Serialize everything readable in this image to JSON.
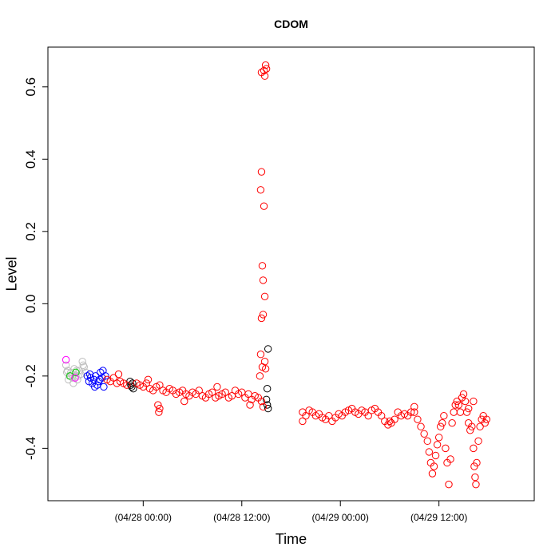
{
  "chart_data": {
    "type": "scatter",
    "title": "CDOM",
    "xlabel": "Time",
    "ylabel": "Level",
    "x_ticks": [
      "(04/28 00:00)",
      "(04/28 12:00)",
      "(04/29 00:00)",
      "(04/29 12:00)"
    ],
    "y_ticks": [
      "-0.4",
      "-0.2",
      "0.0",
      "0.2",
      "0.4",
      "0.6"
    ],
    "x_range_hours": [
      -11.6,
      47.6
    ],
    "ylim": [
      -0.545,
      0.71
    ],
    "grid": false,
    "legend": "none",
    "marker": "open-circle",
    "x_units": "hours relative to 04/28 00:00",
    "series": [
      {
        "color": "#bebebe",
        "points": [
          [
            -9.4,
            -0.17
          ],
          [
            -9.2,
            -0.185
          ],
          [
            -9.0,
            -0.2
          ],
          [
            -8.8,
            -0.19
          ],
          [
            -8.6,
            -0.205
          ],
          [
            -8.4,
            -0.18
          ],
          [
            -8.2,
            -0.2
          ],
          [
            -8.0,
            -0.21
          ],
          [
            -7.8,
            -0.185
          ],
          [
            -7.6,
            -0.195
          ],
          [
            -7.4,
            -0.16
          ],
          [
            -7.2,
            -0.175
          ],
          [
            -7.0,
            -0.19
          ],
          [
            -6.8,
            -0.2
          ],
          [
            -9.1,
            -0.21
          ],
          [
            -8.5,
            -0.22
          ],
          [
            -7.9,
            -0.2
          ],
          [
            -7.3,
            -0.17
          ],
          [
            -9.3,
            -0.19
          ],
          [
            -8.1,
            -0.185
          ]
        ]
      },
      {
        "color": "#00cd00",
        "points": [
          [
            -8.2,
            -0.19
          ],
          [
            -8.9,
            -0.2
          ]
        ]
      },
      {
        "color": "#ff00ff",
        "points": [
          [
            -9.4,
            -0.155
          ],
          [
            -8.3,
            -0.205
          ]
        ]
      },
      {
        "color": "#0000ff",
        "points": [
          [
            -6.8,
            -0.2
          ],
          [
            -6.6,
            -0.215
          ],
          [
            -6.4,
            -0.205
          ],
          [
            -6.2,
            -0.22
          ],
          [
            -6.0,
            -0.21
          ],
          [
            -5.8,
            -0.2
          ],
          [
            -5.6,
            -0.225
          ],
          [
            -5.4,
            -0.215
          ],
          [
            -5.2,
            -0.19
          ],
          [
            -5.0,
            -0.205
          ],
          [
            -4.8,
            -0.23
          ],
          [
            -4.6,
            -0.2
          ],
          [
            -6.5,
            -0.195
          ],
          [
            -5.9,
            -0.23
          ],
          [
            -5.3,
            -0.21
          ],
          [
            -4.9,
            -0.185
          ]
        ]
      },
      {
        "color": "#000000",
        "points": [
          [
            -1.6,
            -0.215
          ],
          [
            -1.5,
            -0.225
          ],
          [
            -1.4,
            -0.23
          ],
          [
            -1.3,
            -0.22
          ],
          [
            -1.2,
            -0.235
          ],
          [
            15.2,
            -0.125
          ],
          [
            15.1,
            -0.235
          ],
          [
            15.0,
            -0.265
          ],
          [
            15.1,
            -0.28
          ],
          [
            15.2,
            -0.29
          ]
        ]
      },
      {
        "color": "#ff0000",
        "points": [
          [
            -4.4,
            -0.21
          ],
          [
            -4.0,
            -0.215
          ],
          [
            -3.6,
            -0.205
          ],
          [
            -3.2,
            -0.22
          ],
          [
            -2.8,
            -0.215
          ],
          [
            -2.4,
            -0.22
          ],
          [
            -2.0,
            -0.225
          ],
          [
            -0.8,
            -0.22
          ],
          [
            -0.4,
            -0.225
          ],
          [
            0.0,
            -0.23
          ],
          [
            0.4,
            -0.22
          ],
          [
            0.8,
            -0.235
          ],
          [
            1.2,
            -0.24
          ],
          [
            1.6,
            -0.23
          ],
          [
            2.0,
            -0.225
          ],
          [
            2.4,
            -0.24
          ],
          [
            2.8,
            -0.245
          ],
          [
            3.2,
            -0.235
          ],
          [
            3.6,
            -0.24
          ],
          [
            4.0,
            -0.25
          ],
          [
            4.4,
            -0.245
          ],
          [
            4.8,
            -0.24
          ],
          [
            5.2,
            -0.25
          ],
          [
            5.6,
            -0.255
          ],
          [
            6.0,
            -0.245
          ],
          [
            6.4,
            -0.25
          ],
          [
            6.8,
            -0.24
          ],
          [
            7.2,
            -0.255
          ],
          [
            7.6,
            -0.26
          ],
          [
            8.0,
            -0.25
          ],
          [
            8.4,
            -0.245
          ],
          [
            8.8,
            -0.26
          ],
          [
            9.2,
            -0.255
          ],
          [
            9.6,
            -0.25
          ],
          [
            10.0,
            -0.245
          ],
          [
            10.4,
            -0.26
          ],
          [
            10.8,
            -0.255
          ],
          [
            11.2,
            -0.24
          ],
          [
            11.6,
            -0.25
          ],
          [
            12.0,
            -0.245
          ],
          [
            12.4,
            -0.26
          ],
          [
            12.8,
            -0.25
          ],
          [
            13.2,
            -0.265
          ],
          [
            13.6,
            -0.255
          ],
          [
            14.0,
            -0.26
          ],
          [
            14.4,
            -0.27
          ],
          [
            1.8,
            -0.28
          ],
          [
            2.0,
            -0.29
          ],
          [
            1.9,
            -0.3
          ],
          [
            -3.0,
            -0.195
          ],
          [
            0.6,
            -0.21
          ],
          [
            5.0,
            -0.27
          ],
          [
            9.0,
            -0.23
          ],
          [
            13.0,
            -0.28
          ],
          [
            14.6,
            -0.285
          ],
          [
            14.3,
            -0.14
          ],
          [
            14.5,
            -0.175
          ],
          [
            14.2,
            -0.2
          ],
          [
            14.4,
            0.365
          ],
          [
            14.3,
            0.315
          ],
          [
            14.5,
            0.105
          ],
          [
            14.6,
            0.065
          ],
          [
            14.8,
            0.02
          ],
          [
            14.4,
            -0.04
          ],
          [
            14.6,
            -0.03
          ],
          [
            14.7,
            0.27
          ],
          [
            14.7,
            0.645
          ],
          [
            14.9,
            0.66
          ],
          [
            14.8,
            0.63
          ],
          [
            14.4,
            0.64
          ],
          [
            15.0,
            0.65
          ],
          [
            14.8,
            -0.16
          ],
          [
            14.9,
            -0.18
          ],
          [
            19.4,
            -0.3
          ],
          [
            19.4,
            -0.325
          ],
          [
            19.8,
            -0.31
          ],
          [
            20.2,
            -0.295
          ],
          [
            20.6,
            -0.3
          ],
          [
            21.0,
            -0.31
          ],
          [
            21.4,
            -0.305
          ],
          [
            21.8,
            -0.315
          ],
          [
            22.2,
            -0.32
          ],
          [
            22.6,
            -0.31
          ],
          [
            23.0,
            -0.325
          ],
          [
            23.4,
            -0.315
          ],
          [
            23.8,
            -0.305
          ],
          [
            24.2,
            -0.31
          ],
          [
            24.6,
            -0.3
          ],
          [
            25.0,
            -0.295
          ],
          [
            25.4,
            -0.29
          ],
          [
            25.8,
            -0.3
          ],
          [
            26.2,
            -0.305
          ],
          [
            26.6,
            -0.295
          ],
          [
            27.0,
            -0.3
          ],
          [
            27.4,
            -0.31
          ],
          [
            27.8,
            -0.295
          ],
          [
            28.2,
            -0.29
          ],
          [
            28.6,
            -0.3
          ],
          [
            29.0,
            -0.31
          ],
          [
            29.4,
            -0.325
          ],
          [
            29.8,
            -0.335
          ],
          [
            30.2,
            -0.33
          ],
          [
            30.6,
            -0.32
          ],
          [
            31.0,
            -0.3
          ],
          [
            31.4,
            -0.31
          ],
          [
            31.8,
            -0.305
          ],
          [
            32.2,
            -0.31
          ],
          [
            32.6,
            -0.3
          ],
          [
            33.0,
            -0.3
          ],
          [
            33.4,
            -0.32
          ],
          [
            33.8,
            -0.34
          ],
          [
            34.2,
            -0.36
          ],
          [
            34.6,
            -0.38
          ],
          [
            34.8,
            -0.41
          ],
          [
            35.0,
            -0.44
          ],
          [
            35.2,
            -0.47
          ],
          [
            35.4,
            -0.45
          ],
          [
            35.6,
            -0.42
          ],
          [
            35.8,
            -0.39
          ],
          [
            36.0,
            -0.37
          ],
          [
            36.2,
            -0.34
          ],
          [
            36.4,
            -0.33
          ],
          [
            36.6,
            -0.31
          ],
          [
            36.8,
            -0.4
          ],
          [
            37.0,
            -0.44
          ],
          [
            37.2,
            -0.5
          ],
          [
            37.4,
            -0.43
          ],
          [
            37.6,
            -0.33
          ],
          [
            37.8,
            -0.3
          ],
          [
            38.0,
            -0.28
          ],
          [
            38.2,
            -0.27
          ],
          [
            38.4,
            -0.28
          ],
          [
            38.6,
            -0.3
          ],
          [
            38.8,
            -0.26
          ],
          [
            39.0,
            -0.25
          ],
          [
            39.2,
            -0.27
          ],
          [
            39.4,
            -0.3
          ],
          [
            39.6,
            -0.33
          ],
          [
            39.8,
            -0.35
          ],
          [
            40.0,
            -0.34
          ],
          [
            40.2,
            -0.4
          ],
          [
            40.3,
            -0.45
          ],
          [
            40.4,
            -0.48
          ],
          [
            40.5,
            -0.5
          ],
          [
            40.6,
            -0.44
          ],
          [
            40.8,
            -0.38
          ],
          [
            41.0,
            -0.34
          ],
          [
            41.2,
            -0.32
          ],
          [
            41.4,
            -0.31
          ],
          [
            41.6,
            -0.33
          ],
          [
            41.8,
            -0.32
          ],
          [
            40.2,
            -0.27
          ],
          [
            39.6,
            -0.29
          ],
          [
            30.0,
            -0.325
          ],
          [
            33.0,
            -0.285
          ]
        ]
      }
    ]
  }
}
